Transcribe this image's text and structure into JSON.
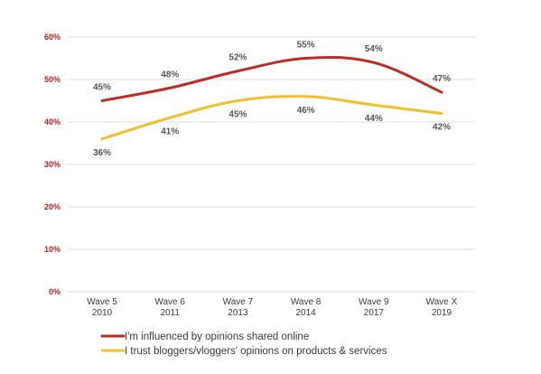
{
  "chart_data": {
    "type": "line",
    "categories": [
      {
        "line1": "Wave 5",
        "line2": "2010"
      },
      {
        "line1": "Wave 6",
        "line2": "2011"
      },
      {
        "line1": "Wave 7",
        "line2": "2013"
      },
      {
        "line1": "Wave 8",
        "line2": "2014"
      },
      {
        "line1": "Wave 9",
        "line2": "2017"
      },
      {
        "line1": "Wave X",
        "line2": "2019"
      }
    ],
    "ylim": [
      0,
      60
    ],
    "yticks": [
      0,
      10,
      20,
      30,
      40,
      50,
      60
    ],
    "ytick_suffix": "%",
    "grid": true,
    "legend_position": "bottom-left",
    "series": [
      {
        "name": "I'm influenced by opinions shared online",
        "color": "#bf2c25",
        "values": [
          45,
          48,
          52,
          55,
          54,
          47
        ],
        "label_placement": "above"
      },
      {
        "name": "I trust bloggers/vloggers' opinions on products & services",
        "color": "#f2c02e",
        "values": [
          36,
          41,
          45,
          46,
          44,
          42
        ],
        "label_placement": "below"
      }
    ]
  }
}
